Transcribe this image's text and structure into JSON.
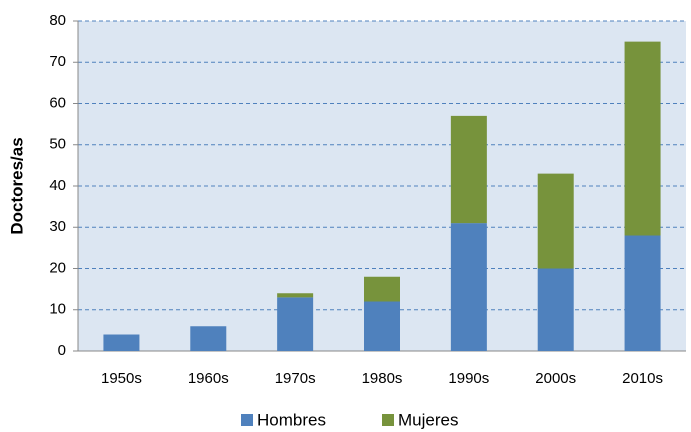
{
  "chart_data": {
    "type": "stacked_bar",
    "y_label": "Doctores/as",
    "categories": [
      "1950s",
      "1960s",
      "1970s",
      "1980s",
      "1990s",
      "2000s",
      "2010s"
    ],
    "series": [
      {
        "name": "Hombres",
        "color": "#4f81bd",
        "values": [
          4,
          6,
          13,
          12,
          31,
          20,
          28
        ]
      },
      {
        "name": "Mujeres",
        "color": "#77933c",
        "values": [
          0,
          0,
          1,
          6,
          26,
          23,
          47
        ]
      }
    ],
    "ylim": [
      0,
      80
    ],
    "yticks": [
      0,
      10,
      20,
      30,
      40,
      50,
      60,
      70,
      80
    ],
    "grid": true,
    "legend": "bottom"
  }
}
